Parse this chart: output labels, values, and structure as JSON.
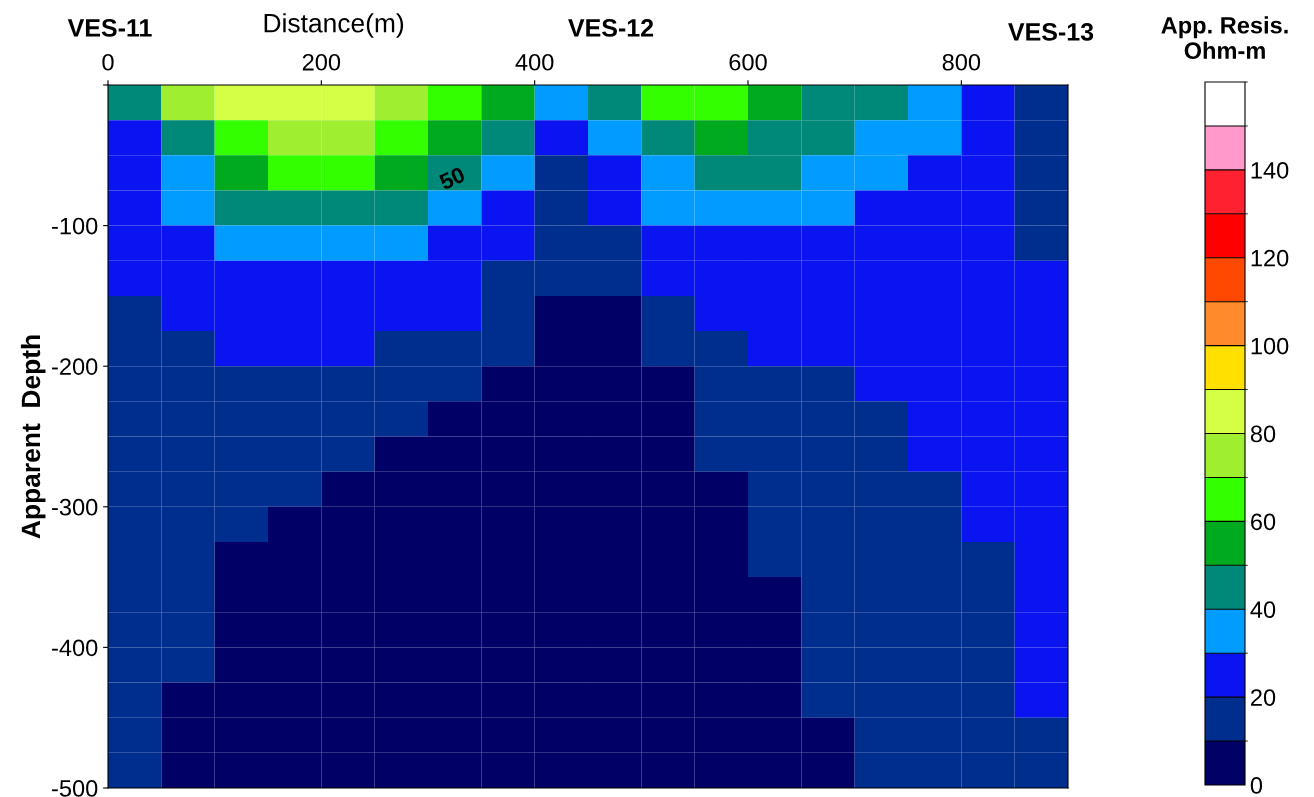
{
  "chart_data": {
    "type": "heatmap",
    "xlabel": "Distance(m)",
    "ylabel": "Apparent  Depth",
    "clabel": "App. Resis.\nOhm-m",
    "xlim": [
      0,
      900
    ],
    "xticks": [
      0,
      200,
      400,
      600,
      800
    ],
    "ylim": [
      -500,
      0
    ],
    "yticks": [
      {
        "value": 0,
        "label": null
      },
      -100,
      -200,
      -300,
      -400,
      -500
    ],
    "clim": [
      0,
      160
    ],
    "cticks": [
      0,
      20,
      40,
      60,
      80,
      100,
      120,
      140
    ],
    "colors": [
      "#000066",
      "#002e8f",
      "#0a14f0",
      "#009cff",
      "#008878",
      "#00aa1e",
      "#33ff00",
      "#a0ee30",
      "#d4ff44",
      "#ffe000",
      "#ff8a2a",
      "#ff4800",
      "#ff0000",
      "#ff2030",
      "#ff99cc",
      "#ffffff"
    ],
    "annotations": [
      "VES-11",
      "VES-12",
      "VES-13",
      "50"
    ],
    "x": [
      25,
      75,
      125,
      175,
      225,
      275,
      325,
      375,
      425,
      475,
      525,
      575,
      625,
      675,
      725,
      775,
      825,
      875
    ],
    "y": [
      -12.5,
      -37.5,
      -62.5,
      -87.5,
      -112.5,
      -137.5,
      -162.5,
      -187.5,
      -212.5,
      -237.5,
      -262.5,
      -287.5,
      -312.5,
      -337.5,
      -362.5,
      -387.5,
      -412.5,
      -437.5,
      -462.5,
      -487.5
    ],
    "cells": [
      [
        45,
        75,
        85,
        85,
        85,
        75,
        65,
        55,
        35,
        45,
        65,
        65,
        55,
        45,
        45,
        35,
        25,
        15
      ],
      [
        25,
        45,
        65,
        75,
        75,
        65,
        55,
        45,
        25,
        35,
        45,
        55,
        45,
        45,
        35,
        35,
        25,
        15
      ],
      [
        25,
        35,
        55,
        65,
        65,
        55,
        45,
        35,
        15,
        25,
        35,
        45,
        45,
        35,
        35,
        25,
        25,
        15
      ],
      [
        25,
        35,
        45,
        45,
        45,
        45,
        35,
        25,
        15,
        25,
        35,
        35,
        35,
        35,
        25,
        25,
        25,
        15
      ],
      [
        25,
        25,
        35,
        35,
        35,
        35,
        25,
        25,
        15,
        15,
        25,
        25,
        25,
        25,
        25,
        25,
        25,
        15
      ],
      [
        25,
        25,
        25,
        25,
        25,
        25,
        25,
        15,
        15,
        15,
        25,
        25,
        25,
        25,
        25,
        25,
        25,
        25
      ],
      [
        15,
        25,
        25,
        25,
        25,
        25,
        25,
        15,
        5,
        5,
        15,
        25,
        25,
        25,
        25,
        25,
        25,
        25
      ],
      [
        15,
        15,
        25,
        25,
        25,
        15,
        15,
        15,
        5,
        5,
        15,
        15,
        25,
        25,
        25,
        25,
        25,
        25
      ],
      [
        15,
        15,
        15,
        15,
        15,
        15,
        15,
        5,
        5,
        5,
        5,
        15,
        15,
        15,
        25,
        25,
        25,
        25
      ],
      [
        15,
        15,
        15,
        15,
        15,
        15,
        5,
        5,
        5,
        5,
        5,
        15,
        15,
        15,
        15,
        25,
        25,
        25
      ],
      [
        15,
        15,
        15,
        15,
        15,
        5,
        5,
        5,
        5,
        5,
        5,
        15,
        15,
        15,
        15,
        25,
        25,
        25
      ],
      [
        15,
        15,
        15,
        15,
        5,
        5,
        5,
        5,
        5,
        5,
        5,
        5,
        15,
        15,
        15,
        15,
        25,
        25
      ],
      [
        15,
        15,
        15,
        5,
        5,
        5,
        5,
        5,
        5,
        5,
        5,
        5,
        15,
        15,
        15,
        15,
        25,
        25
      ],
      [
        15,
        15,
        5,
        5,
        5,
        5,
        5,
        5,
        5,
        5,
        5,
        5,
        15,
        15,
        15,
        15,
        15,
        25
      ],
      [
        15,
        15,
        5,
        5,
        5,
        5,
        5,
        5,
        5,
        5,
        5,
        5,
        5,
        15,
        15,
        15,
        15,
        25
      ],
      [
        15,
        15,
        5,
        5,
        5,
        5,
        5,
        5,
        5,
        5,
        5,
        5,
        5,
        15,
        15,
        15,
        15,
        25
      ],
      [
        15,
        15,
        5,
        5,
        5,
        5,
        5,
        5,
        5,
        5,
        5,
        5,
        5,
        15,
        15,
        15,
        15,
        25
      ],
      [
        15,
        5,
        5,
        5,
        5,
        5,
        5,
        5,
        5,
        5,
        5,
        5,
        5,
        15,
        15,
        15,
        15,
        25
      ],
      [
        15,
        5,
        5,
        5,
        5,
        5,
        5,
        5,
        5,
        5,
        5,
        5,
        5,
        5,
        15,
        15,
        15,
        15
      ],
      [
        15,
        5,
        5,
        5,
        5,
        5,
        5,
        5,
        5,
        5,
        5,
        5,
        5,
        5,
        15,
        15,
        15,
        15
      ]
    ]
  }
}
